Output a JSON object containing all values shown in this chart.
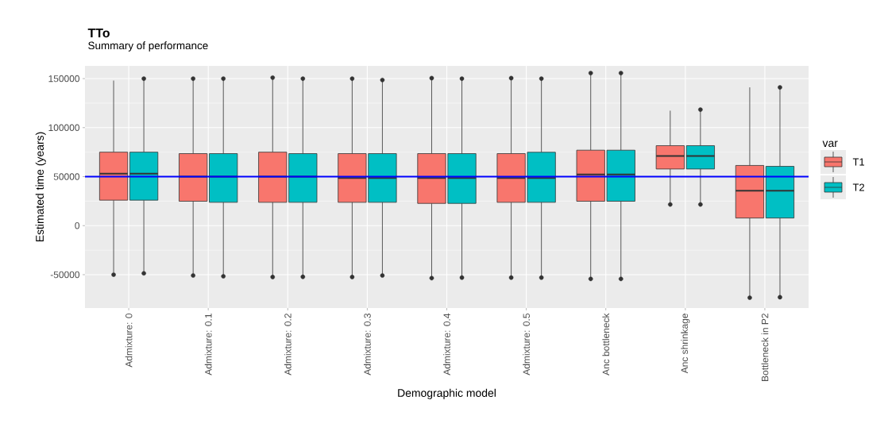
{
  "chart_data": {
    "type": "box",
    "title": "TTo",
    "subtitle": "Summary of performance",
    "xlabel": "Demographic model",
    "ylabel": "Estimated time (years)",
    "legend_title": "var",
    "categories": [
      "Admixture: 0",
      "Admixture: 0.1",
      "Admixture: 0.2",
      "Admixture: 0.3",
      "Admixture: 0.4",
      "Admixture: 0.5",
      "Anc bottleneck",
      "Anc shrinkage",
      "Bottleneck in P2"
    ],
    "ylim": [
      -84000,
      163000
    ],
    "yticks": [
      -50000,
      0,
      50000,
      100000,
      150000
    ],
    "grid": true,
    "legend": "right",
    "ref_lines": [
      {
        "axis": "y",
        "value": 50000,
        "color": "#0000ff"
      }
    ],
    "series": [
      {
        "name": "T1",
        "color": "#f8766d",
        "boxes": [
          {
            "low": -48000,
            "q1": 26000,
            "median": 53000,
            "q3": 75000,
            "high": 148000,
            "outliers": [
              -50000
            ]
          },
          {
            "low": -50800,
            "q1": 24900,
            "median": 50000,
            "q3": 73500,
            "high": 150000,
            "outliers": [
              -50800,
              150000
            ]
          },
          {
            "low": -52400,
            "q1": 23800,
            "median": 50000,
            "q3": 75000,
            "high": 151000,
            "outliers": [
              -52400,
              151000
            ]
          },
          {
            "low": -52400,
            "q1": 23800,
            "median": 48600,
            "q3": 73500,
            "high": 150000,
            "outliers": [
              -52400,
              150000
            ]
          },
          {
            "low": -53500,
            "q1": 22700,
            "median": 48600,
            "q3": 73500,
            "high": 150500,
            "outliers": [
              -53500,
              150500
            ]
          },
          {
            "low": -53000,
            "q1": 23800,
            "median": 48600,
            "q3": 73500,
            "high": 150500,
            "outliers": [
              -53000,
              150500
            ]
          },
          {
            "low": -54300,
            "q1": 24900,
            "median": 52200,
            "q3": 77000,
            "high": 155700,
            "outliers": [
              -54300,
              155700
            ]
          },
          {
            "low": 21600,
            "q1": 57800,
            "median": 71100,
            "q3": 81600,
            "high": 117300,
            "outliers": [
              21600
            ]
          },
          {
            "low": -73500,
            "q1": 7800,
            "median": 35700,
            "q3": 61400,
            "high": 141100,
            "outliers": [
              -73500
            ]
          }
        ]
      },
      {
        "name": "T2",
        "color": "#00bfc4",
        "boxes": [
          {
            "low": -48600,
            "q1": 26000,
            "median": 53000,
            "q3": 75000,
            "high": 150000,
            "outliers": [
              -48600,
              150000
            ]
          },
          {
            "low": -51600,
            "q1": 23800,
            "median": 50000,
            "q3": 73500,
            "high": 150000,
            "outliers": [
              -51600,
              150000
            ]
          },
          {
            "low": -52200,
            "q1": 23800,
            "median": 50000,
            "q3": 73500,
            "high": 150000,
            "outliers": [
              -52200,
              150000
            ]
          },
          {
            "low": -50800,
            "q1": 23800,
            "median": 48600,
            "q3": 73500,
            "high": 148600,
            "outliers": [
              -50800,
              148600
            ]
          },
          {
            "low": -53000,
            "q1": 22700,
            "median": 48600,
            "q3": 73500,
            "high": 150000,
            "outliers": [
              -53000,
              150000
            ]
          },
          {
            "low": -53000,
            "q1": 23800,
            "median": 48600,
            "q3": 74900,
            "high": 150000,
            "outliers": [
              -53000,
              150000
            ]
          },
          {
            "low": -54300,
            "q1": 24900,
            "median": 52200,
            "q3": 77000,
            "high": 155700,
            "outliers": [
              -54300,
              155700
            ]
          },
          {
            "low": 21600,
            "q1": 57800,
            "median": 71100,
            "q3": 81600,
            "high": 118400,
            "outliers": [
              21600,
              118400
            ]
          },
          {
            "low": -73000,
            "q1": 7800,
            "median": 35700,
            "q3": 60500,
            "high": 141100,
            "outliers": [
              -73000,
              141100
            ]
          }
        ]
      }
    ]
  }
}
